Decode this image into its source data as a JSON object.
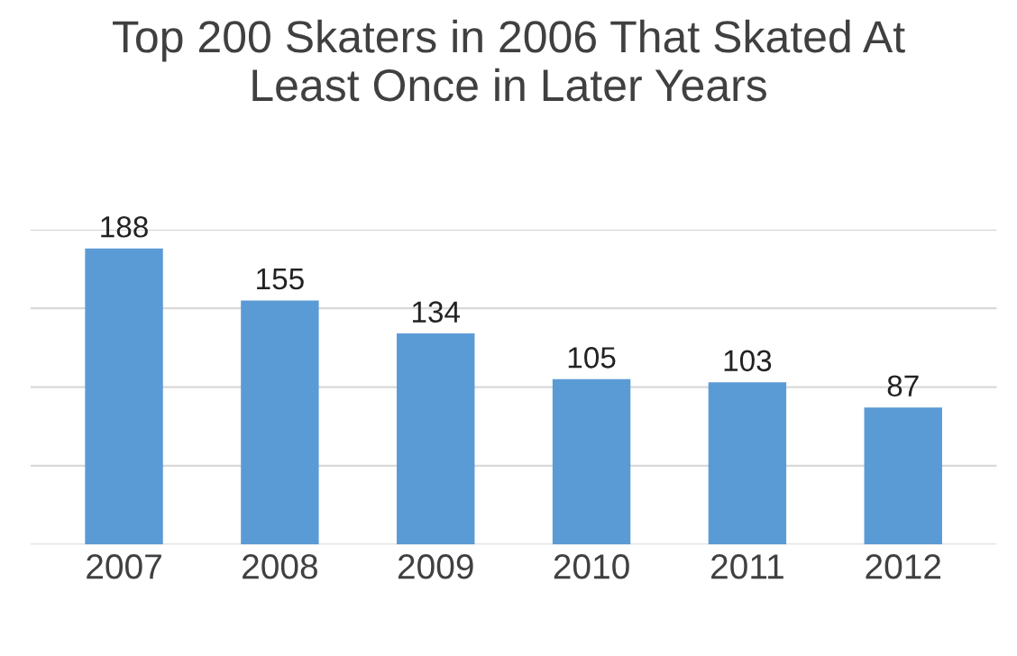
{
  "chart_data": {
    "type": "bar",
    "title": "Top 200 Skaters in 2006 That Skated At\nLeast Once in Later Years",
    "categories": [
      "2007",
      "2008",
      "2009",
      "2010",
      "2011",
      "2012"
    ],
    "values": [
      188,
      155,
      134,
      105,
      103,
      87
    ],
    "color": "#5b9bd5",
    "ylim": [
      0,
      200
    ],
    "yticks": [
      {
        "value": 0,
        "label": null
      },
      {
        "value": 50,
        "label": null
      },
      {
        "value": 100,
        "label": null
      },
      {
        "value": 150,
        "label": null
      },
      {
        "value": 200,
        "label": null
      }
    ],
    "grid": "y",
    "data_labels": true,
    "tick_labels": "x"
  }
}
